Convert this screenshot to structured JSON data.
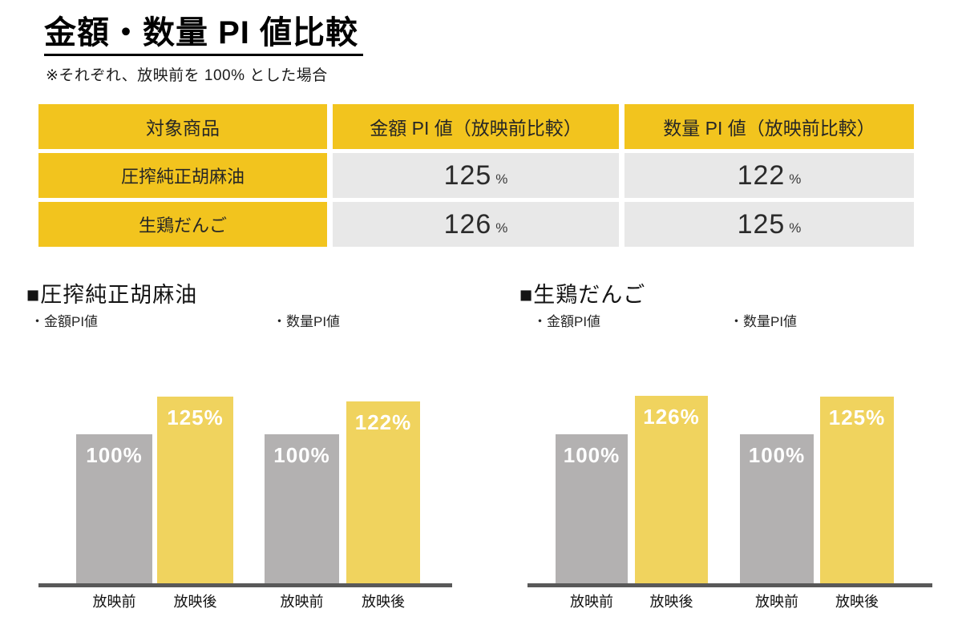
{
  "page": {
    "title": "金額・数量 PI 値比較",
    "note": "※それぞれ、放映前を 100% とした場合"
  },
  "colors": {
    "table_yellow": "#F2C41E",
    "bar_yellow": "#F0D35E",
    "bar_gray": "#B3B1B1",
    "cell_gray": "#E8E8E8",
    "axis_gray": "#595959"
  },
  "table": {
    "headers": [
      "対象商品",
      "金額 PI 値（放映前比較）",
      "数量 PI 値（放映前比較）"
    ],
    "unit": "%",
    "rows": [
      {
        "product": "圧搾純正胡麻油",
        "amount_pi": "125",
        "quantity_pi": "122"
      },
      {
        "product": "生鶏だんご",
        "amount_pi": "126",
        "quantity_pi": "125"
      }
    ]
  },
  "chart_data": [
    {
      "type": "bar",
      "title": "■圧搾純正胡麻油",
      "series_labels": [
        "・金額PI値",
        "・数量PI値"
      ],
      "categories": [
        "放映前",
        "放映後"
      ],
      "ylim": [
        0,
        135
      ],
      "series": [
        {
          "name": "金額PI値",
          "values": [
            100,
            125
          ]
        },
        {
          "name": "数量PI値",
          "values": [
            100,
            122
          ]
        }
      ],
      "bars": [
        {
          "category": "放映前",
          "series": "金額PI値",
          "value": 100,
          "label": "100%",
          "color": "gray"
        },
        {
          "category": "放映後",
          "series": "金額PI値",
          "value": 125,
          "label": "125%",
          "color": "yellow"
        },
        {
          "category": "放映前",
          "series": "数量PI値",
          "value": 100,
          "label": "100%",
          "color": "gray"
        },
        {
          "category": "放映後",
          "series": "数量PI値",
          "value": 122,
          "label": "122%",
          "color": "yellow"
        }
      ]
    },
    {
      "type": "bar",
      "title": "■生鶏だんご",
      "series_labels": [
        "・金額PI値",
        "・数量PI値"
      ],
      "categories": [
        "放映前",
        "放映後"
      ],
      "ylim": [
        0,
        135
      ],
      "series": [
        {
          "name": "金額PI値",
          "values": [
            100,
            126
          ]
        },
        {
          "name": "数量PI値",
          "values": [
            100,
            125
          ]
        }
      ],
      "bars": [
        {
          "category": "放映前",
          "series": "金額PI値",
          "value": 100,
          "label": "100%",
          "color": "gray"
        },
        {
          "category": "放映後",
          "series": "金額PI値",
          "value": 126,
          "label": "126%",
          "color": "yellow"
        },
        {
          "category": "放映前",
          "series": "数量PI値",
          "value": 100,
          "label": "100%",
          "color": "gray"
        },
        {
          "category": "放映後",
          "series": "数量PI値",
          "value": 125,
          "label": "125%",
          "color": "yellow"
        }
      ]
    }
  ]
}
